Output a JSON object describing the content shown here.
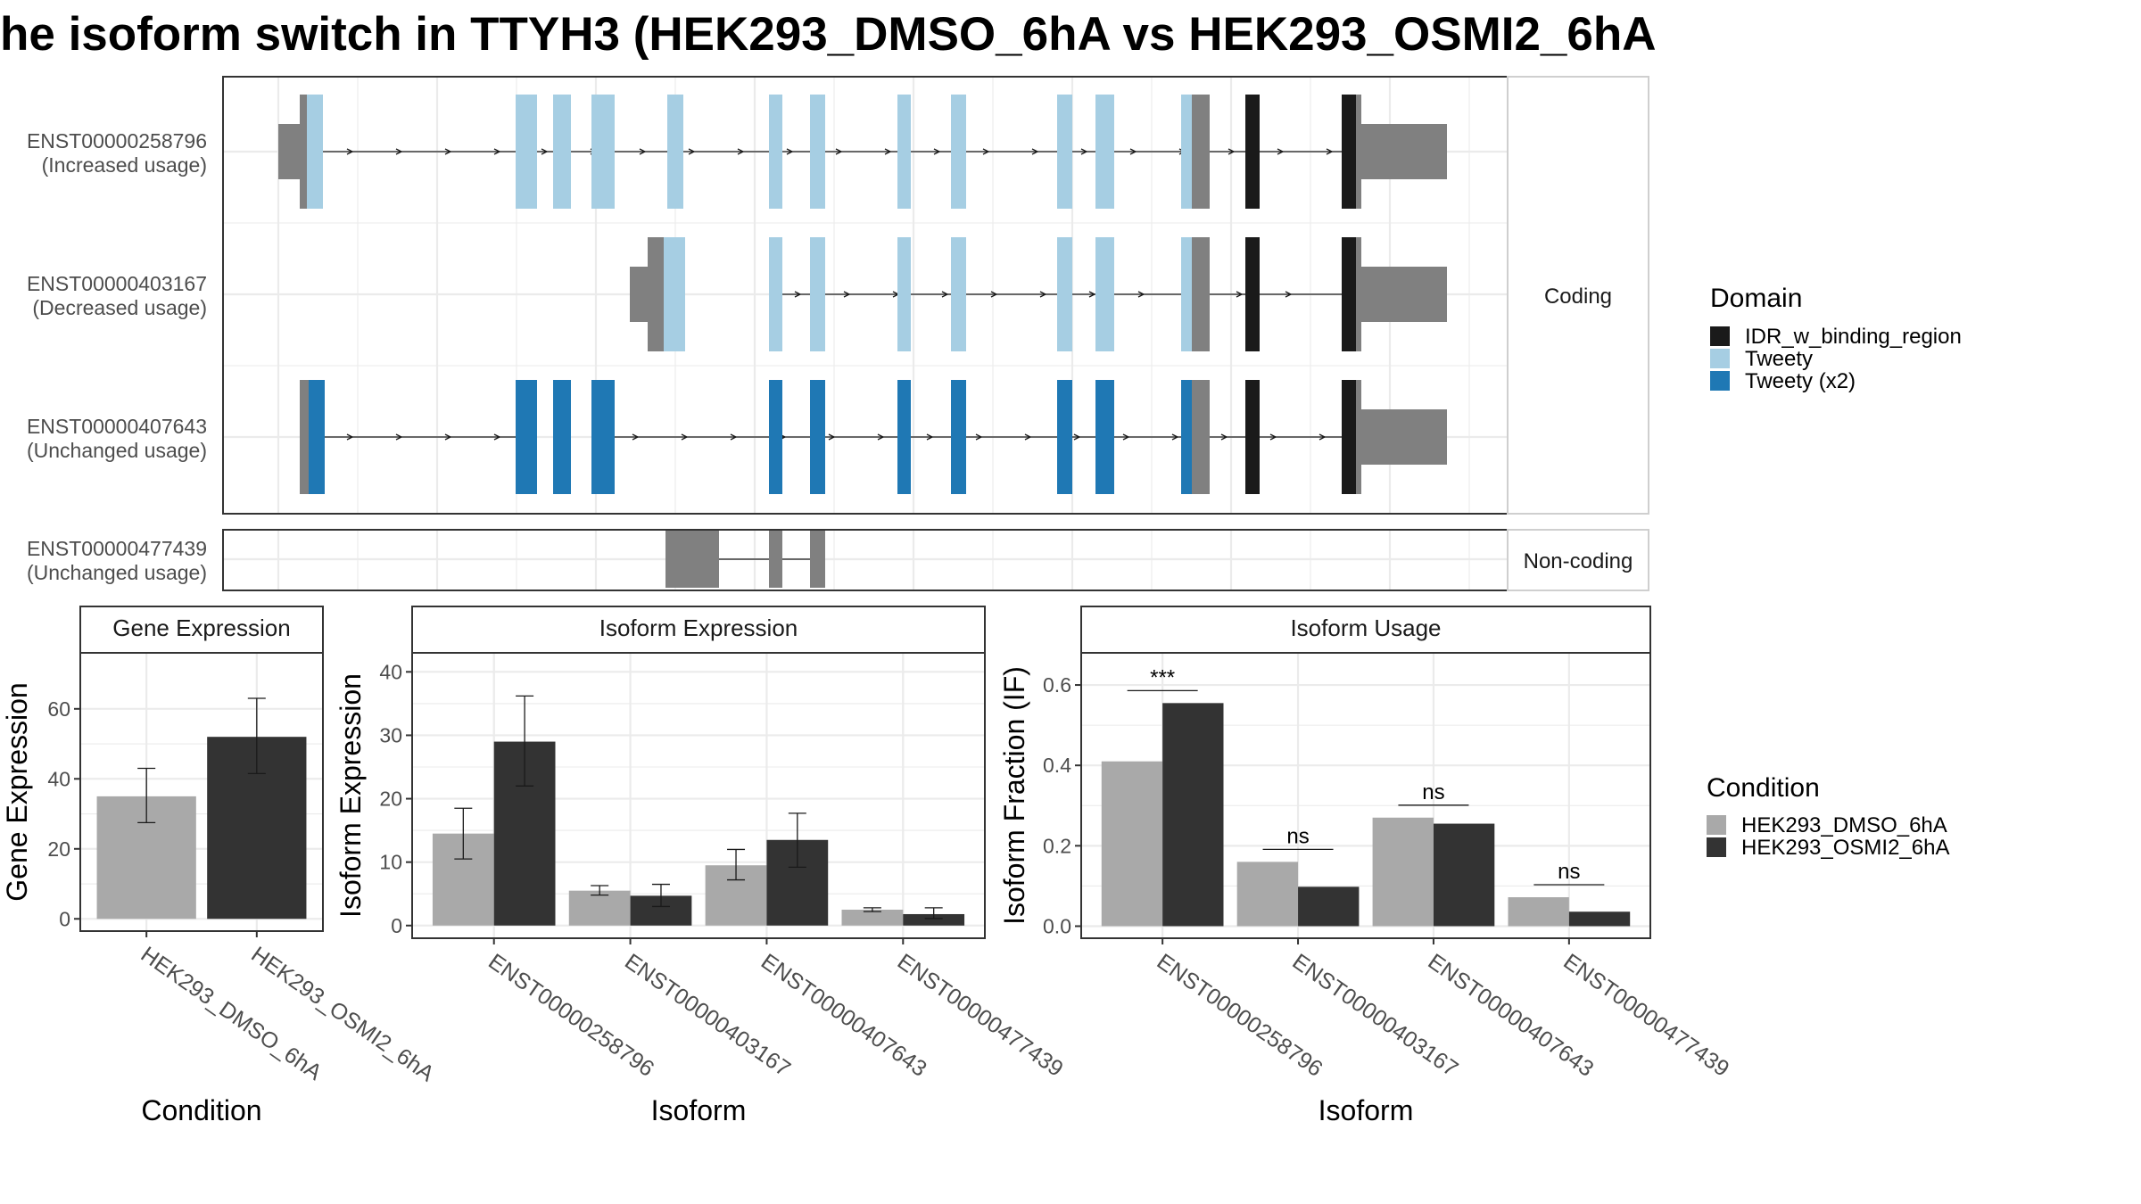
{
  "title": "he isoform switch in TTYH3 (HEK293_DMSO_6hA vs HEK293_OSMI2_6hA",
  "colors": {
    "cond1": "#a9a9a9",
    "cond2": "#333333",
    "utr": "#808080",
    "idr": "#1a1a1a",
    "tweety": "#a6cee3",
    "tweety_x2": "#1f78b4",
    "grid": "#ebebeb",
    "strip": "#ffffff"
  },
  "structure": {
    "strip_coding": "Coding",
    "strip_noncoding": "Non-coding",
    "transcripts": [
      {
        "id": "ENST00000258796",
        "usage": "(Increased usage)",
        "group": "coding",
        "domain": "tweety"
      },
      {
        "id": "ENST00000403167",
        "usage": "(Decreased usage)",
        "group": "coding",
        "domain": "tweety"
      },
      {
        "id": "ENST00000407643",
        "usage": "(Unchanged usage)",
        "group": "coding",
        "domain": "tweety_x2"
      },
      {
        "id": "ENST00000477439",
        "usage": "(Unchanged usage)",
        "group": "noncoding",
        "domain": null
      }
    ]
  },
  "legend_domain": {
    "title": "Domain",
    "items": [
      {
        "label": "IDR_w_binding_region",
        "color": "#1a1a1a"
      },
      {
        "label": "Tweety",
        "color": "#a6cee3"
      },
      {
        "label": "Tweety (x2)",
        "color": "#1f78b4"
      }
    ]
  },
  "legend_condition": {
    "title": "Condition",
    "items": [
      {
        "label": "HEK293_DMSO_6hA",
        "color": "#a9a9a9"
      },
      {
        "label": "HEK293_OSMI2_6hA",
        "color": "#333333"
      }
    ]
  },
  "chart_data": [
    {
      "type": "bar",
      "title": "Gene Expression",
      "xlabel": "Condition",
      "ylabel": "Gene Expression",
      "categories": [
        "HEK293_DMSO_6hA",
        "HEK293_OSMI2_6hA"
      ],
      "values": [
        35,
        52
      ],
      "error_low": [
        27.5,
        41.5
      ],
      "error_high": [
        43,
        63
      ],
      "ylim": [
        -3.5,
        76
      ],
      "yticks": [
        0,
        20,
        40,
        60
      ]
    },
    {
      "type": "bar",
      "title": "Isoform Expression",
      "xlabel": "Isoform",
      "ylabel": "Isoform Expression",
      "categories": [
        "ENST00000258796",
        "ENST00000403167",
        "ENST00000407643",
        "ENST00000477439"
      ],
      "series": [
        {
          "name": "HEK293_DMSO_6hA",
          "values": [
            14.5,
            5.5,
            9.5,
            2.5
          ],
          "error_low": [
            10.5,
            4.8,
            7.2,
            2.2
          ],
          "error_high": [
            18.5,
            6.3,
            12,
            2.8
          ]
        },
        {
          "name": "HEK293_OSMI2_6hA",
          "values": [
            29,
            4.7,
            13.5,
            1.8
          ],
          "error_low": [
            22,
            3,
            9.2,
            1.1
          ],
          "error_high": [
            36.2,
            6.5,
            17.7,
            2.8
          ]
        }
      ],
      "ylim": [
        -2,
        43
      ],
      "yticks": [
        0,
        10,
        20,
        30,
        40
      ]
    },
    {
      "type": "bar",
      "title": "Isoform Usage",
      "xlabel": "Isoform",
      "ylabel": "Isoform Fraction (IF)",
      "categories": [
        "ENST00000258796",
        "ENST00000403167",
        "ENST00000407643",
        "ENST00000477439"
      ],
      "series": [
        {
          "name": "HEK293_DMSO_6hA",
          "values": [
            0.41,
            0.16,
            0.27,
            0.072
          ]
        },
        {
          "name": "HEK293_OSMI2_6hA",
          "values": [
            0.555,
            0.098,
            0.255,
            0.036
          ]
        }
      ],
      "significance": [
        "***",
        "ns",
        "ns",
        "ns"
      ],
      "ylim": [
        -0.03,
        0.68
      ],
      "yticks": [
        0.0,
        0.2,
        0.4,
        0.6
      ],
      "ytick_labels": [
        "0.0",
        "0.2",
        "0.4",
        "0.6"
      ]
    }
  ]
}
